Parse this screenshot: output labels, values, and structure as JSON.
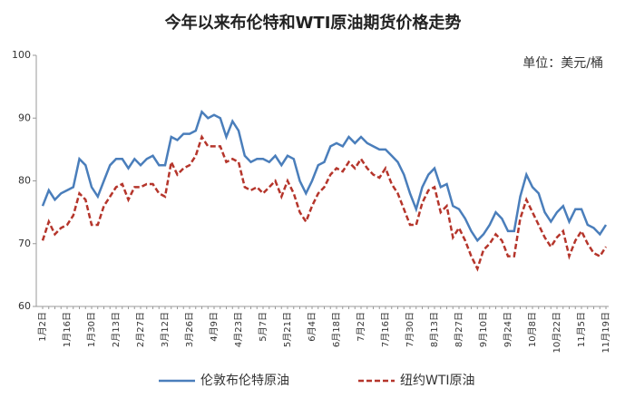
{
  "chart_data": {
    "type": "line",
    "title": "今年以来布伦特和WTI原油期货价格走势",
    "unit": "单位：美元/桶",
    "categories": [
      "1月2日",
      null,
      null,
      null,
      "1月16日",
      null,
      null,
      null,
      "1月30日",
      null,
      null,
      null,
      "2月13日",
      null,
      null,
      null,
      "2月27日",
      null,
      null,
      null,
      "3月12日",
      null,
      null,
      null,
      "3月26日",
      null,
      null,
      null,
      "4月9日",
      null,
      null,
      null,
      "4月23日",
      null,
      null,
      null,
      "5月7日",
      null,
      null,
      null,
      "5月21日",
      null,
      null,
      null,
      "6月4日",
      null,
      null,
      null,
      "6月18日",
      null,
      null,
      null,
      "7月2日",
      null,
      null,
      null,
      "7月16日",
      null,
      null,
      null,
      "7月30日",
      null,
      null,
      null,
      "8月13日",
      null,
      null,
      null,
      "8月27日",
      null,
      null,
      null,
      "9月10日",
      null,
      null,
      null,
      "9月24日",
      null,
      null,
      null,
      "10月8日",
      null,
      null,
      null,
      "10月22日",
      null,
      null,
      null,
      "11月5日",
      null,
      null,
      null,
      "11月19日"
    ],
    "series": [
      {
        "name": "伦敦布伦特原油",
        "color": "#4a7ebb",
        "line_style": "solid",
        "values": [
          76,
          78.5,
          77,
          78,
          78.5,
          79,
          83.5,
          82.5,
          79,
          77.5,
          80,
          82.5,
          83.5,
          83.5,
          82,
          83.5,
          82.5,
          83.5,
          84,
          82.5,
          82.5,
          87,
          86.5,
          87.5,
          87.5,
          88,
          91,
          90,
          90.5,
          90,
          87,
          89.5,
          88,
          84,
          83,
          83.5,
          83.5,
          83,
          84,
          82.5,
          84,
          83.5,
          80,
          78,
          80,
          82.5,
          83,
          85.5,
          86,
          85.5,
          87,
          86,
          87,
          86,
          85.5,
          85,
          85,
          84,
          83,
          81,
          78,
          75.5,
          79,
          81,
          82,
          79,
          79.5,
          76,
          75.5,
          74,
          72,
          70.5,
          71.5,
          73,
          75,
          74,
          72,
          72,
          77.5,
          81,
          79,
          78,
          75,
          73.5,
          75,
          76,
          73.5,
          75.5,
          75.5,
          73,
          72.5,
          71.5,
          73
        ]
      },
      {
        "name": "纽约WTI原油",
        "color": "#b5352b",
        "line_style": "dashed",
        "values": [
          70.5,
          73.5,
          71.5,
          72.5,
          73,
          74.5,
          78,
          77,
          73,
          73,
          76,
          77.5,
          79,
          79.5,
          77,
          79,
          79,
          79.5,
          79.5,
          78,
          77.5,
          83,
          81,
          82,
          82.5,
          84,
          87,
          85.5,
          85.5,
          85.5,
          83,
          83.5,
          83,
          79,
          78.5,
          79,
          78,
          79,
          80,
          77.5,
          80,
          78,
          75,
          73.5,
          76,
          78,
          79,
          81,
          82,
          81.5,
          83,
          82,
          83.5,
          82,
          81,
          80.5,
          82,
          79.5,
          78,
          75.5,
          73,
          73,
          76.5,
          78.5,
          79,
          75,
          76,
          71,
          72.5,
          70.5,
          68,
          66,
          69,
          70,
          71.5,
          70.5,
          68,
          68,
          74,
          77,
          75,
          73,
          71,
          69.5,
          71,
          72,
          68,
          70.5,
          72,
          70,
          68.5,
          68,
          69.5
        ]
      }
    ],
    "ylim": [
      60,
      100
    ],
    "yticks": [
      60,
      70,
      80,
      90,
      100
    ],
    "grid": false
  }
}
